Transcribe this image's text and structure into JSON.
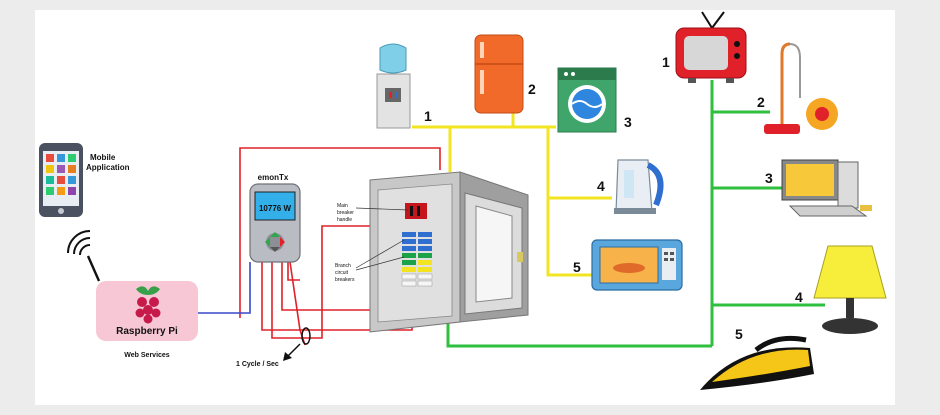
{
  "mobile": {
    "label_line1": "Mobile",
    "label_line2": "Application"
  },
  "raspberry": {
    "label": "Raspberry Pi",
    "services": "Web Services"
  },
  "emontx": {
    "title": "emonTx",
    "display": "10776 W"
  },
  "panel": {
    "main_breaker_line1": "Main",
    "main_breaker_line2": "breaker",
    "main_breaker_line3": "handle",
    "branch_line1": "Branch",
    "branch_line2": "circuit",
    "branch_line3": "breakers"
  },
  "sampling": "1 Cycle / Sec",
  "yellow_circuit": {
    "numbers": [
      "1",
      "2",
      "3",
      "4",
      "5"
    ]
  },
  "green_circuit": {
    "numbers": [
      "1",
      "2",
      "3",
      "4",
      "5"
    ]
  },
  "colors": {
    "yellow_wire": "#f2e421",
    "green_wire": "#2fbf3f",
    "red_wire": "#e0212a",
    "blue_wire": "#3949c9"
  }
}
